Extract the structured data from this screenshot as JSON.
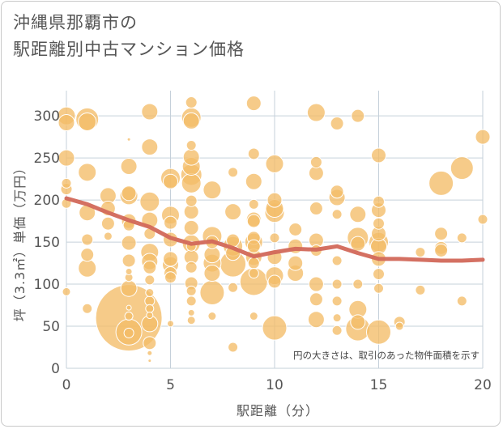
{
  "title": {
    "line1": "沖縄県那覇市の",
    "line2": "駅距離別中古マンション価格"
  },
  "colors": {
    "bubble_fill": "#f3bd68",
    "bubble_stroke": "#ffffff",
    "trend_line": "#d2685a",
    "grid": "#c5d0da",
    "axis_text": "#555555"
  },
  "chart_data": {
    "type": "scatter",
    "subtype": "bubble",
    "xlabel": "駅距離（分）",
    "ylabel": "坪（3.3㎡）単価（万円）",
    "xlim": [
      0,
      20
    ],
    "ylim": [
      0,
      330
    ],
    "xticks": [
      0,
      5,
      10,
      15,
      20
    ],
    "yticks": [
      0,
      50,
      100,
      150,
      200,
      250,
      300
    ],
    "grid": true,
    "note": "円の大きさは、取引のあった物件面積を示す",
    "bubble_size_meaning": "取引のあった物件面積",
    "points": [
      {
        "x": 0,
        "y": 300,
        "s": 11
      },
      {
        "x": 0,
        "y": 292,
        "s": 10
      },
      {
        "x": 0,
        "y": 250,
        "s": 10
      },
      {
        "x": 0,
        "y": 220,
        "s": 6
      },
      {
        "x": 0,
        "y": 213,
        "s": 7
      },
      {
        "x": 0,
        "y": 196,
        "s": 6
      },
      {
        "x": 0,
        "y": 91,
        "s": 5
      },
      {
        "x": 1,
        "y": 296,
        "s": 14
      },
      {
        "x": 1,
        "y": 293,
        "s": 11
      },
      {
        "x": 1,
        "y": 233,
        "s": 11
      },
      {
        "x": 1,
        "y": 185,
        "s": 10
      },
      {
        "x": 1,
        "y": 153,
        "s": 7
      },
      {
        "x": 1,
        "y": 135,
        "s": 8
      },
      {
        "x": 1,
        "y": 119,
        "s": 11
      },
      {
        "x": 1,
        "y": 71,
        "s": 6
      },
      {
        "x": 2,
        "y": 205,
        "s": 10
      },
      {
        "x": 2,
        "y": 190,
        "s": 9
      },
      {
        "x": 2,
        "y": 172,
        "s": 8
      },
      {
        "x": 2,
        "y": 157,
        "s": 5
      },
      {
        "x": 3,
        "y": 272,
        "s": 2
      },
      {
        "x": 3,
        "y": 240,
        "s": 10
      },
      {
        "x": 3,
        "y": 208,
        "s": 9
      },
      {
        "x": 3,
        "y": 205,
        "s": 11
      },
      {
        "x": 3,
        "y": 175,
        "s": 9
      },
      {
        "x": 3,
        "y": 170,
        "s": 7
      },
      {
        "x": 3,
        "y": 149,
        "s": 9
      },
      {
        "x": 3,
        "y": 128,
        "s": 8
      },
      {
        "x": 3,
        "y": 115,
        "s": 4
      },
      {
        "x": 3,
        "y": 108,
        "s": 5
      },
      {
        "x": 3,
        "y": 95,
        "s": 10
      },
      {
        "x": 3,
        "y": 72,
        "s": 3
      },
      {
        "x": 3,
        "y": 60,
        "s": 41
      },
      {
        "x": 3,
        "y": 62,
        "s": 5
      },
      {
        "x": 3,
        "y": 43,
        "s": 16
      },
      {
        "x": 3,
        "y": 42,
        "s": 6
      },
      {
        "x": 4,
        "y": 305,
        "s": 10
      },
      {
        "x": 4,
        "y": 263,
        "s": 10
      },
      {
        "x": 4,
        "y": 198,
        "s": 12
      },
      {
        "x": 4,
        "y": 176,
        "s": 10
      },
      {
        "x": 4,
        "y": 160,
        "s": 7
      },
      {
        "x": 4,
        "y": 138,
        "s": 11
      },
      {
        "x": 4,
        "y": 127,
        "s": 10
      },
      {
        "x": 4,
        "y": 120,
        "s": 8
      },
      {
        "x": 4,
        "y": 105,
        "s": 6
      },
      {
        "x": 4,
        "y": 90,
        "s": 5
      },
      {
        "x": 4,
        "y": 80,
        "s": 6
      },
      {
        "x": 4,
        "y": 71,
        "s": 5
      },
      {
        "x": 4,
        "y": 63,
        "s": 4
      },
      {
        "x": 4,
        "y": 53,
        "s": 10
      },
      {
        "x": 4,
        "y": 30,
        "s": 8
      },
      {
        "x": 4,
        "y": 18,
        "s": 3
      },
      {
        "x": 4,
        "y": 9,
        "s": 2
      },
      {
        "x": 5,
        "y": 226,
        "s": 12
      },
      {
        "x": 5,
        "y": 222,
        "s": 9
      },
      {
        "x": 5,
        "y": 182,
        "s": 11
      },
      {
        "x": 5,
        "y": 173,
        "s": 8
      },
      {
        "x": 5,
        "y": 153,
        "s": 9
      },
      {
        "x": 5,
        "y": 130,
        "s": 9
      },
      {
        "x": 5,
        "y": 123,
        "s": 10
      },
      {
        "x": 5,
        "y": 113,
        "s": 8
      },
      {
        "x": 5,
        "y": 108,
        "s": 7
      },
      {
        "x": 5,
        "y": 53,
        "s": 4
      },
      {
        "x": 6,
        "y": 316,
        "s": 7
      },
      {
        "x": 6,
        "y": 298,
        "s": 12
      },
      {
        "x": 6,
        "y": 294,
        "s": 10
      },
      {
        "x": 6,
        "y": 265,
        "s": 6
      },
      {
        "x": 6,
        "y": 251,
        "s": 10
      },
      {
        "x": 6,
        "y": 240,
        "s": 11
      },
      {
        "x": 6,
        "y": 230,
        "s": 13
      },
      {
        "x": 6,
        "y": 220,
        "s": 12
      },
      {
        "x": 6,
        "y": 199,
        "s": 7
      },
      {
        "x": 6,
        "y": 186,
        "s": 9
      },
      {
        "x": 6,
        "y": 167,
        "s": 9
      },
      {
        "x": 6,
        "y": 148,
        "s": 11
      },
      {
        "x": 6,
        "y": 145,
        "s": 6
      },
      {
        "x": 6,
        "y": 132,
        "s": 9
      },
      {
        "x": 6,
        "y": 120,
        "s": 7
      },
      {
        "x": 6,
        "y": 101,
        "s": 8
      },
      {
        "x": 6,
        "y": 92,
        "s": 6
      },
      {
        "x": 6,
        "y": 80,
        "s": 6
      },
      {
        "x": 6,
        "y": 66,
        "s": 4
      },
      {
        "x": 6,
        "y": 57,
        "s": 5
      },
      {
        "x": 7,
        "y": 212,
        "s": 11
      },
      {
        "x": 7,
        "y": 157,
        "s": 12
      },
      {
        "x": 7,
        "y": 150,
        "s": 8
      },
      {
        "x": 7,
        "y": 135,
        "s": 10
      },
      {
        "x": 7,
        "y": 125,
        "s": 11
      },
      {
        "x": 7,
        "y": 113,
        "s": 10
      },
      {
        "x": 7,
        "y": 90,
        "s": 15
      },
      {
        "x": 7,
        "y": 62,
        "s": 5
      },
      {
        "x": 8,
        "y": 233,
        "s": 6
      },
      {
        "x": 8,
        "y": 186,
        "s": 10
      },
      {
        "x": 8,
        "y": 152,
        "s": 8
      },
      {
        "x": 8,
        "y": 145,
        "s": 12
      },
      {
        "x": 8,
        "y": 137,
        "s": 9
      },
      {
        "x": 8,
        "y": 124,
        "s": 16
      },
      {
        "x": 8,
        "y": 96,
        "s": 6
      },
      {
        "x": 8,
        "y": 25,
        "s": 6
      },
      {
        "x": 9,
        "y": 315,
        "s": 9
      },
      {
        "x": 9,
        "y": 255,
        "s": 7
      },
      {
        "x": 9,
        "y": 222,
        "s": 10
      },
      {
        "x": 9,
        "y": 195,
        "s": 6
      },
      {
        "x": 9,
        "y": 177,
        "s": 9
      },
      {
        "x": 9,
        "y": 175,
        "s": 8
      },
      {
        "x": 9,
        "y": 155,
        "s": 8
      },
      {
        "x": 9,
        "y": 150,
        "s": 11
      },
      {
        "x": 9,
        "y": 145,
        "s": 8
      },
      {
        "x": 9,
        "y": 132,
        "s": 10
      },
      {
        "x": 9,
        "y": 125,
        "s": 7
      },
      {
        "x": 9,
        "y": 113,
        "s": 6
      },
      {
        "x": 9,
        "y": 103,
        "s": 17
      },
      {
        "x": 9,
        "y": 62,
        "s": 5
      },
      {
        "x": 10,
        "y": 243,
        "s": 11
      },
      {
        "x": 10,
        "y": 200,
        "s": 9
      },
      {
        "x": 10,
        "y": 190,
        "s": 11
      },
      {
        "x": 10,
        "y": 185,
        "s": 12
      },
      {
        "x": 10,
        "y": 155,
        "s": 6
      },
      {
        "x": 10,
        "y": 132,
        "s": 9
      },
      {
        "x": 10,
        "y": 110,
        "s": 11
      },
      {
        "x": 10,
        "y": 103,
        "s": 8
      },
      {
        "x": 10,
        "y": 48,
        "s": 15
      },
      {
        "x": 11,
        "y": 165,
        "s": 8
      },
      {
        "x": 11,
        "y": 145,
        "s": 9
      },
      {
        "x": 11,
        "y": 125,
        "s": 9
      },
      {
        "x": 11,
        "y": 113,
        "s": 10
      },
      {
        "x": 12,
        "y": 304,
        "s": 11
      },
      {
        "x": 12,
        "y": 245,
        "s": 7
      },
      {
        "x": 12,
        "y": 232,
        "s": 9
      },
      {
        "x": 12,
        "y": 190,
        "s": 8
      },
      {
        "x": 12,
        "y": 152,
        "s": 9
      },
      {
        "x": 12,
        "y": 140,
        "s": 7
      },
      {
        "x": 12,
        "y": 100,
        "s": 9
      },
      {
        "x": 12,
        "y": 82,
        "s": 8
      },
      {
        "x": 12,
        "y": 58,
        "s": 10
      },
      {
        "x": 13,
        "y": 291,
        "s": 8
      },
      {
        "x": 13,
        "y": 210,
        "s": 8
      },
      {
        "x": 13,
        "y": 203,
        "s": 10
      },
      {
        "x": 13,
        "y": 183,
        "s": 6
      },
      {
        "x": 13,
        "y": 128,
        "s": 6
      },
      {
        "x": 13,
        "y": 100,
        "s": 6
      },
      {
        "x": 13,
        "y": 80,
        "s": 6
      },
      {
        "x": 13,
        "y": 60,
        "s": 5
      },
      {
        "x": 13,
        "y": 45,
        "s": 6
      },
      {
        "x": 14,
        "y": 300,
        "s": 8
      },
      {
        "x": 14,
        "y": 183,
        "s": 10
      },
      {
        "x": 14,
        "y": 155,
        "s": 13
      },
      {
        "x": 14,
        "y": 148,
        "s": 9
      },
      {
        "x": 14,
        "y": 100,
        "s": 6
      },
      {
        "x": 14,
        "y": 70,
        "s": 11
      },
      {
        "x": 14,
        "y": 55,
        "s": 9
      },
      {
        "x": 14,
        "y": 47,
        "s": 15
      },
      {
        "x": 15,
        "y": 253,
        "s": 9
      },
      {
        "x": 15,
        "y": 198,
        "s": 7
      },
      {
        "x": 15,
        "y": 188,
        "s": 9
      },
      {
        "x": 15,
        "y": 172,
        "s": 7
      },
      {
        "x": 15,
        "y": 160,
        "s": 9
      },
      {
        "x": 15,
        "y": 150,
        "s": 12
      },
      {
        "x": 15,
        "y": 145,
        "s": 10
      },
      {
        "x": 15,
        "y": 130,
        "s": 9
      },
      {
        "x": 15,
        "y": 112,
        "s": 7
      },
      {
        "x": 15,
        "y": 95,
        "s": 6
      },
      {
        "x": 15,
        "y": 43,
        "s": 15
      },
      {
        "x": 16,
        "y": 55,
        "s": 7
      },
      {
        "x": 16,
        "y": 50,
        "s": 5
      },
      {
        "x": 17,
        "y": 138,
        "s": 6
      },
      {
        "x": 17,
        "y": 93,
        "s": 6
      },
      {
        "x": 18,
        "y": 220,
        "s": 15
      },
      {
        "x": 18,
        "y": 160,
        "s": 8
      },
      {
        "x": 18,
        "y": 143,
        "s": 8
      },
      {
        "x": 18,
        "y": 140,
        "s": 8
      },
      {
        "x": 19,
        "y": 238,
        "s": 14
      },
      {
        "x": 19,
        "y": 155,
        "s": 6
      },
      {
        "x": 19,
        "y": 80,
        "s": 6
      },
      {
        "x": 20,
        "y": 275,
        "s": 9
      },
      {
        "x": 20,
        "y": 177,
        "s": 6
      }
    ],
    "trend": {
      "x": [
        0,
        1,
        2,
        3,
        4,
        5,
        6,
        7,
        8,
        9,
        10,
        11,
        12,
        13,
        14,
        15,
        16,
        17,
        18,
        19,
        20
      ],
      "y": [
        202,
        195,
        185,
        176,
        168,
        155,
        148,
        151,
        143,
        133,
        138,
        142,
        141,
        145,
        137,
        130,
        130,
        129,
        128,
        128,
        129
      ]
    }
  }
}
